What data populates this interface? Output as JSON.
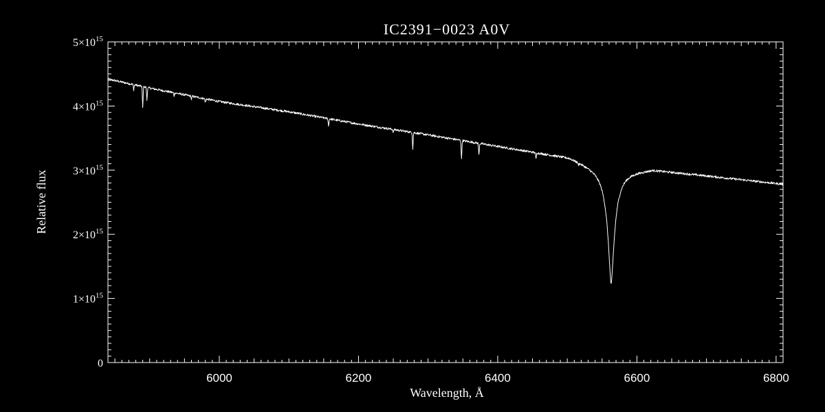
{
  "chart_data": {
    "type": "line",
    "title": "IC2391−0023   A0V",
    "xlabel": "Wavelength, Å",
    "ylabel": "Relative flux",
    "xlim": [
      5840,
      6810
    ],
    "ylim": [
      0,
      5000000000000000.0
    ],
    "grid": false,
    "legend": "none",
    "x_ticks": [
      6000,
      6200,
      6400,
      6600,
      6800
    ],
    "x_tick_labels": [
      "6000",
      "6200",
      "6400",
      "6600",
      "6800"
    ],
    "y_ticks": [
      0,
      1000000000000000.0,
      2000000000000000.0,
      3000000000000000.0,
      4000000000000000.0,
      5000000000000000.0
    ],
    "y_tick_labels": [
      {
        "mantissa": "0",
        "exponent": ""
      },
      {
        "mantissa": "1×10",
        "exponent": "15"
      },
      {
        "mantissa": "2×10",
        "exponent": "15"
      },
      {
        "mantissa": "3×10",
        "exponent": "15"
      },
      {
        "mantissa": "4×10",
        "exponent": "15"
      },
      {
        "mantissa": "5×10",
        "exponent": "15"
      }
    ],
    "continuum": [
      [
        5840,
        4420000000000000.0
      ],
      [
        5900,
        4280000000000000.0
      ],
      [
        6000,
        4070000000000000.0
      ],
      [
        6100,
        3910000000000000.0
      ],
      [
        6200,
        3720000000000000.0
      ],
      [
        6300,
        3550000000000000.0
      ],
      [
        6400,
        3370000000000000.0
      ],
      [
        6450,
        3280000000000000.0
      ],
      [
        6500,
        3190000000000000.0
      ],
      [
        6530,
        3120000000000000.0
      ],
      [
        6600,
        3020000000000000.0
      ],
      [
        6700,
        2910000000000000.0
      ],
      [
        6810,
        2780000000000000.0
      ]
    ],
    "halpha": {
      "center": 6563,
      "min_flux": 1220000000000000.0,
      "wing_halfwidth": 60
    },
    "absorption_lines": [
      {
        "x": 5877,
        "depth": 80000000000000.0
      },
      {
        "x": 5890,
        "depth": 330000000000000.0
      },
      {
        "x": 5896,
        "depth": 200000000000000.0
      },
      {
        "x": 5935,
        "depth": 50000000000000.0
      },
      {
        "x": 5960,
        "depth": 50000000000000.0
      },
      {
        "x": 5980,
        "depth": 60000000000000.0
      },
      {
        "x": 6157,
        "depth": 120000000000000.0
      },
      {
        "x": 6250,
        "depth": 50000000000000.0
      },
      {
        "x": 6278,
        "depth": 250000000000000.0
      },
      {
        "x": 6348,
        "depth": 300000000000000.0
      },
      {
        "x": 6373,
        "depth": 180000000000000.0
      },
      {
        "x": 6455,
        "depth": 100000000000000.0
      },
      {
        "x": 6516,
        "depth": 40000000000000.0
      }
    ]
  }
}
